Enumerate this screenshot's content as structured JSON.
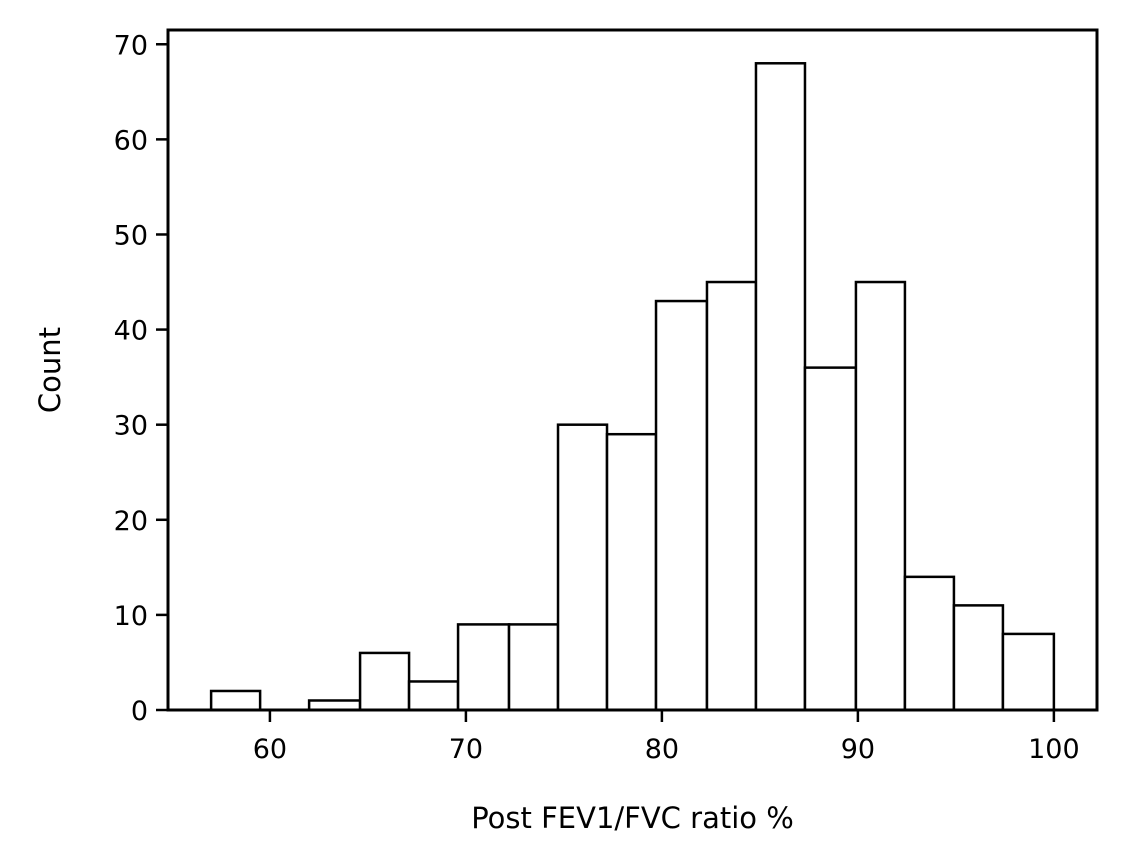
{
  "chart_data": {
    "type": "bar",
    "subtype": "histogram",
    "title": "",
    "xlabel": "Post FEV1/FVC ratio %",
    "ylabel": "Count",
    "xlim": [
      54.8,
      102.2
    ],
    "ylim": [
      0,
      71.5
    ],
    "xticks": [
      60,
      70,
      80,
      90,
      100
    ],
    "yticks": [
      0,
      10,
      20,
      30,
      40,
      50,
      60,
      70
    ],
    "bin_edges": [
      57.0,
      59.5,
      62.0,
      64.6,
      67.1,
      69.6,
      72.2,
      74.7,
      77.2,
      79.7,
      82.3,
      84.8,
      87.3,
      89.9,
      92.4,
      94.9,
      97.4,
      100.0
    ],
    "counts": [
      2,
      0,
      1,
      6,
      3,
      9,
      9,
      30,
      29,
      43,
      45,
      68,
      36,
      45,
      14,
      11,
      8
    ],
    "bar_fill": "#ffffff",
    "bar_edge": "#000000",
    "grid": false,
    "legend": "none"
  }
}
